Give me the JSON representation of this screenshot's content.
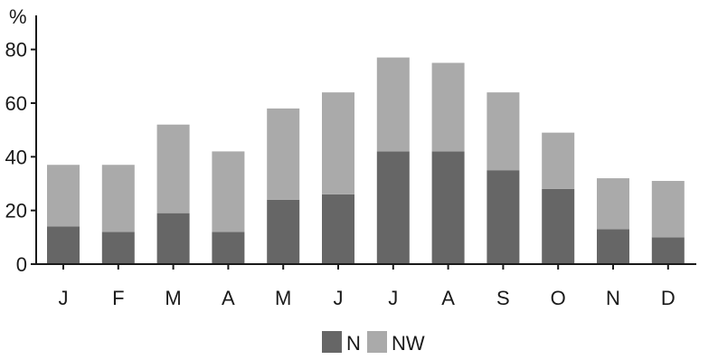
{
  "chart_data": {
    "type": "bar",
    "stacked": true,
    "title": "",
    "xlabel": "",
    "ylabel": "%",
    "ylim": [
      0,
      90
    ],
    "yticks": [
      0,
      20,
      40,
      60,
      80
    ],
    "grid": false,
    "legend": "bottom-center",
    "categories": [
      "J",
      "F",
      "M",
      "A",
      "M",
      "J",
      "J",
      "A",
      "S",
      "O",
      "N",
      "D"
    ],
    "series": [
      {
        "name": "N",
        "color": "#666666",
        "values": [
          14,
          12,
          19,
          12,
          24,
          26,
          42,
          42,
          35,
          28,
          13,
          10
        ]
      },
      {
        "name": "NW",
        "color": "#aaaaaa",
        "values": [
          23,
          25,
          33,
          30,
          34,
          38,
          35,
          33,
          29,
          21,
          19,
          21
        ]
      }
    ]
  }
}
